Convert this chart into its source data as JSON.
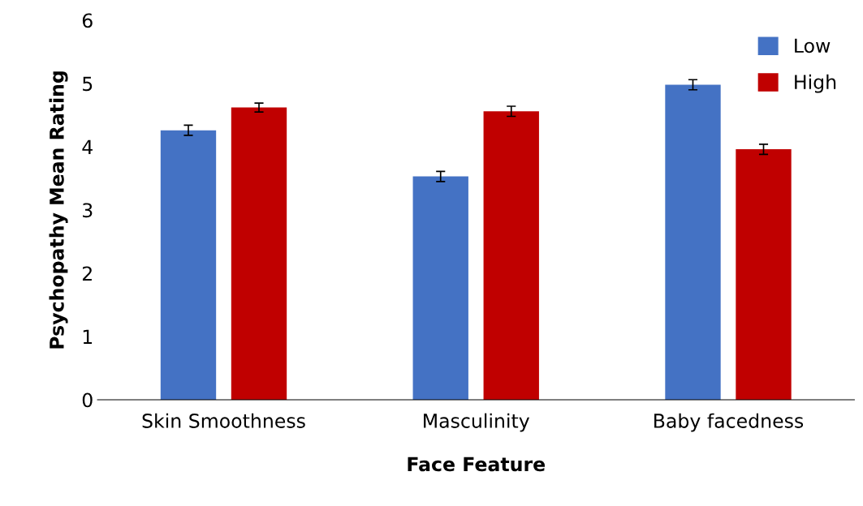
{
  "chart_data": {
    "type": "bar",
    "xlabel": "Face Feature",
    "ylabel": "Psychopathy Mean Rating",
    "categories": [
      "Skin Smoothness",
      "Masculinity",
      "Baby facedness"
    ],
    "series": [
      {
        "name": "Low",
        "color": "#4472c4",
        "values": [
          4.26,
          3.53,
          4.98
        ],
        "errors": [
          0.08,
          0.08,
          0.08
        ]
      },
      {
        "name": "High",
        "color": "#c00000",
        "values": [
          4.62,
          4.56,
          3.96
        ],
        "errors": [
          0.07,
          0.08,
          0.08
        ]
      }
    ],
    "ylim": [
      0,
      6
    ],
    "yticks": [
      0,
      1,
      2,
      3,
      4,
      5,
      6
    ],
    "grid": false,
    "legend": "top right"
  }
}
